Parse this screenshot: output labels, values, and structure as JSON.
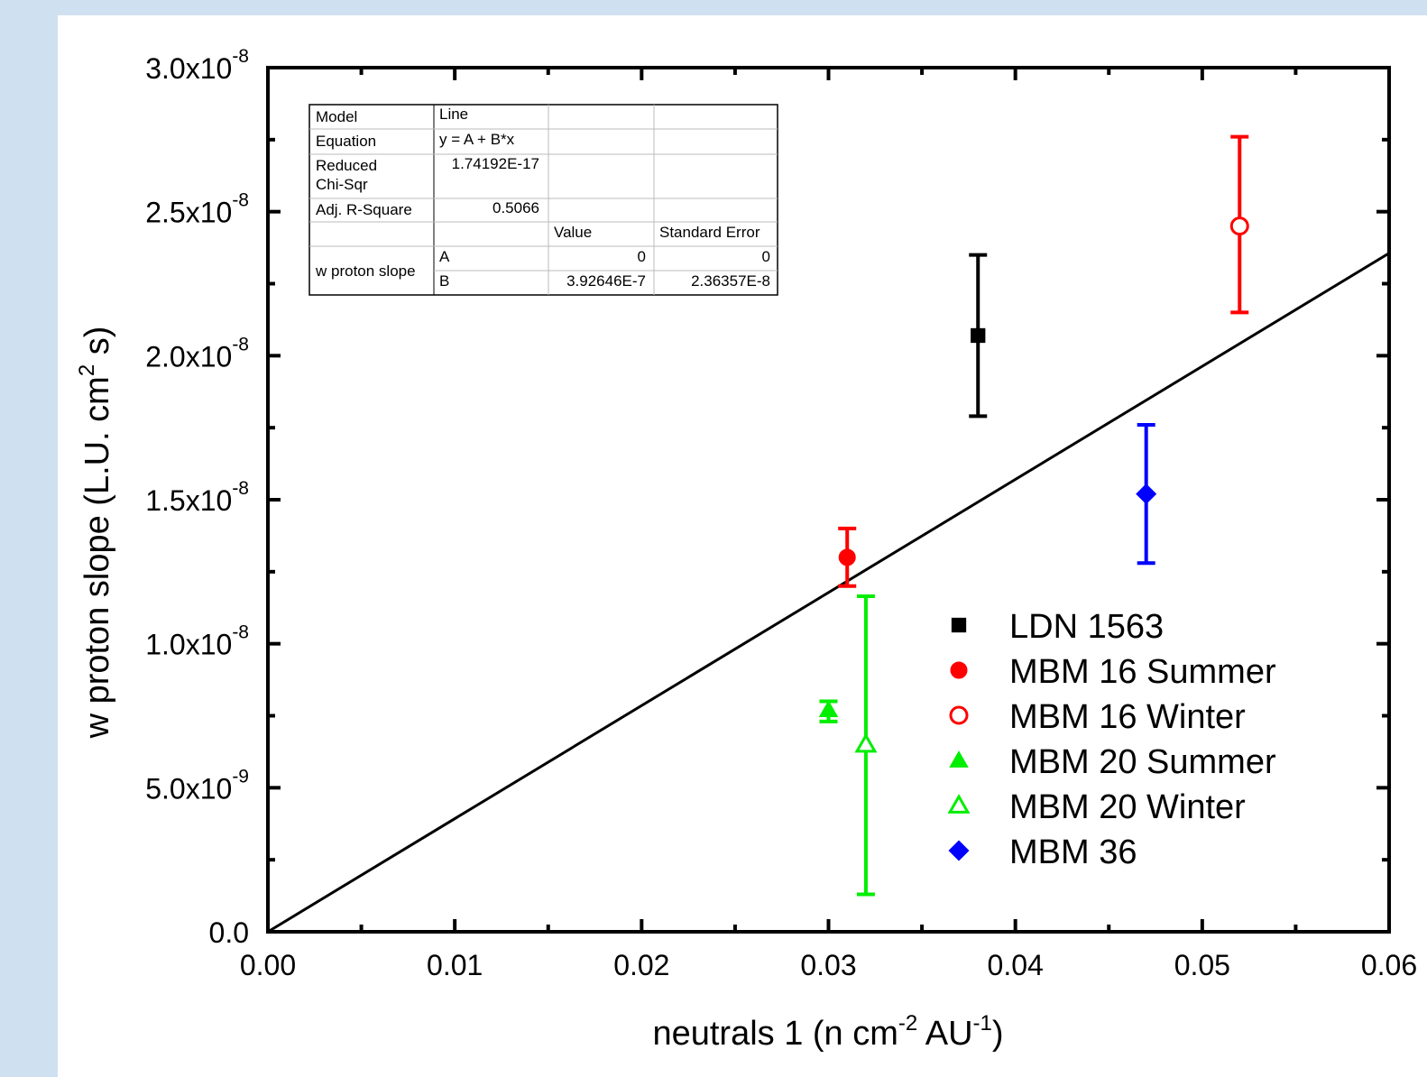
{
  "chart_data": {
    "type": "scatter",
    "xlabel_main": "neutrals 1 (n cm",
    "xlabel_sup1": "-2",
    "xlabel_mid": " AU",
    "xlabel_sup2": "-1",
    "xlabel_end": ")",
    "ylabel_main": "w proton slope (L.U. cm",
    "ylabel_sup": "2",
    "ylabel_end": " s)",
    "xlim": [
      0.0,
      0.06
    ],
    "ylim": [
      0.0,
      3e-08
    ],
    "x_ticks": [
      0.0,
      0.01,
      0.02,
      0.03,
      0.04,
      0.05,
      0.06
    ],
    "x_tick_labels": [
      "0.00",
      "0.01",
      "0.02",
      "0.03",
      "0.04",
      "0.05",
      "0.06"
    ],
    "y_ticks": [
      0.0,
      5e-09,
      1e-08,
      1.5e-08,
      2e-08,
      2.5e-08,
      3e-08
    ],
    "y_tick_labels": [
      {
        "mantissa": "0.0",
        "exponent": ""
      },
      {
        "mantissa": "5.0x10",
        "exponent": "-9"
      },
      {
        "mantissa": "1.0x10",
        "exponent": "-8"
      },
      {
        "mantissa": "1.5x10",
        "exponent": "-8"
      },
      {
        "mantissa": "2.0x10",
        "exponent": "-8"
      },
      {
        "mantissa": "2.5x10",
        "exponent": "-8"
      },
      {
        "mantissa": "3.0x10",
        "exponent": "-8"
      }
    ],
    "series": [
      {
        "name": "LDN 1563",
        "marker": "square",
        "filled": true,
        "color": "#000000",
        "x": 0.038,
        "y": 2.07e-08,
        "err_low": 1.79e-08,
        "err_high": 2.35e-08
      },
      {
        "name": "MBM 16 Summer",
        "marker": "circle",
        "filled": true,
        "color": "#ff0000",
        "x": 0.031,
        "y": 1.3e-08,
        "err_low": 1.2e-08,
        "err_high": 1.4e-08
      },
      {
        "name": "MBM 16 Winter",
        "marker": "circle",
        "filled": false,
        "color": "#ff0000",
        "x": 0.052,
        "y": 2.45e-08,
        "err_low": 2.15e-08,
        "err_high": 2.76e-08
      },
      {
        "name": "MBM 20 Summer",
        "marker": "triangle",
        "filled": true,
        "color": "#00ee00",
        "x": 0.03,
        "y": 7.7e-09,
        "err_low": 7.3e-09,
        "err_high": 8e-09
      },
      {
        "name": "MBM 20 Winter",
        "marker": "triangle",
        "filled": false,
        "color": "#00ee00",
        "x": 0.032,
        "y": 6.5e-09,
        "err_low": 1.3e-09,
        "err_high": 1.165e-08
      },
      {
        "name": "MBM 36",
        "marker": "diamond",
        "filled": true,
        "color": "#0000ff",
        "x": 0.047,
        "y": 1.52e-08,
        "err_low": 1.28e-08,
        "err_high": 1.76e-08
      }
    ],
    "fit_line": {
      "intercept": 0,
      "slope": 3.92646e-07
    },
    "legend_placement": "lower-right",
    "grid": false
  },
  "fit_table": {
    "rows": [
      [
        "Model",
        "Line",
        "",
        ""
      ],
      [
        "Equation",
        "y = A + B*x",
        "",
        ""
      ],
      [
        "Reduced Chi-Sqr",
        "1.74192E-17",
        "",
        ""
      ],
      [
        "Adj. R-Square",
        "0.5066",
        "",
        ""
      ],
      [
        "",
        "",
        "Value",
        "Standard Error"
      ],
      [
        "w proton slope",
        "A",
        "0",
        "0"
      ],
      [
        "",
        "B",
        "3.92646E-7",
        "2.36357E-8"
      ]
    ],
    "reduced_line1": "Reduced",
    "reduced_line2": "Chi-Sqr"
  }
}
